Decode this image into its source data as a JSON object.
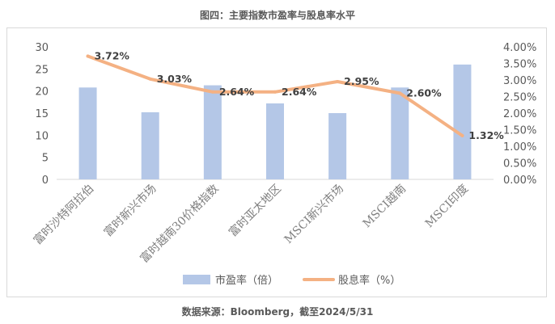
{
  "title": "图四：主要指数市盈率与股息率水平",
  "source": "数据来源：Bloomberg，截至2024/5/31",
  "colors": {
    "bar": "#b4c7e7",
    "line": "#f4b183",
    "text": "#595959",
    "axis": "#d9d9d9"
  },
  "chart_data": {
    "type": "bar+line",
    "categories": [
      "富时沙特阿拉伯",
      "富时新兴市场",
      "富时越南30价格指数",
      "富时亚太地区",
      "MSCI新兴市场",
      "MSCI越南",
      "MSCI印度"
    ],
    "series": [
      {
        "name": "市盈率（倍）",
        "type": "bar",
        "axis": "left",
        "values": [
          20.8,
          15.2,
          21.3,
          17.2,
          15.0,
          20.8,
          26.0
        ]
      },
      {
        "name": "股息率（%）",
        "type": "line",
        "axis": "right",
        "values": [
          3.72,
          3.03,
          2.64,
          2.64,
          2.95,
          2.6,
          1.32
        ]
      }
    ],
    "data_labels": [
      "3.72%",
      "3.03%",
      "2.64%",
      "2.64%",
      "2.95%",
      "2.60%",
      "1.32%"
    ],
    "left_axis": {
      "min": 0,
      "max": 30,
      "step": 5,
      "ticks": [
        "0",
        "5",
        "10",
        "15",
        "20",
        "25",
        "30"
      ]
    },
    "right_axis": {
      "min": 0,
      "max": 4,
      "step": 0.5,
      "ticks": [
        "0.00%",
        "0.50%",
        "1.00%",
        "1.50%",
        "2.00%",
        "2.50%",
        "3.00%",
        "3.50%",
        "4.00%"
      ]
    },
    "legend_position": "bottom-center"
  }
}
